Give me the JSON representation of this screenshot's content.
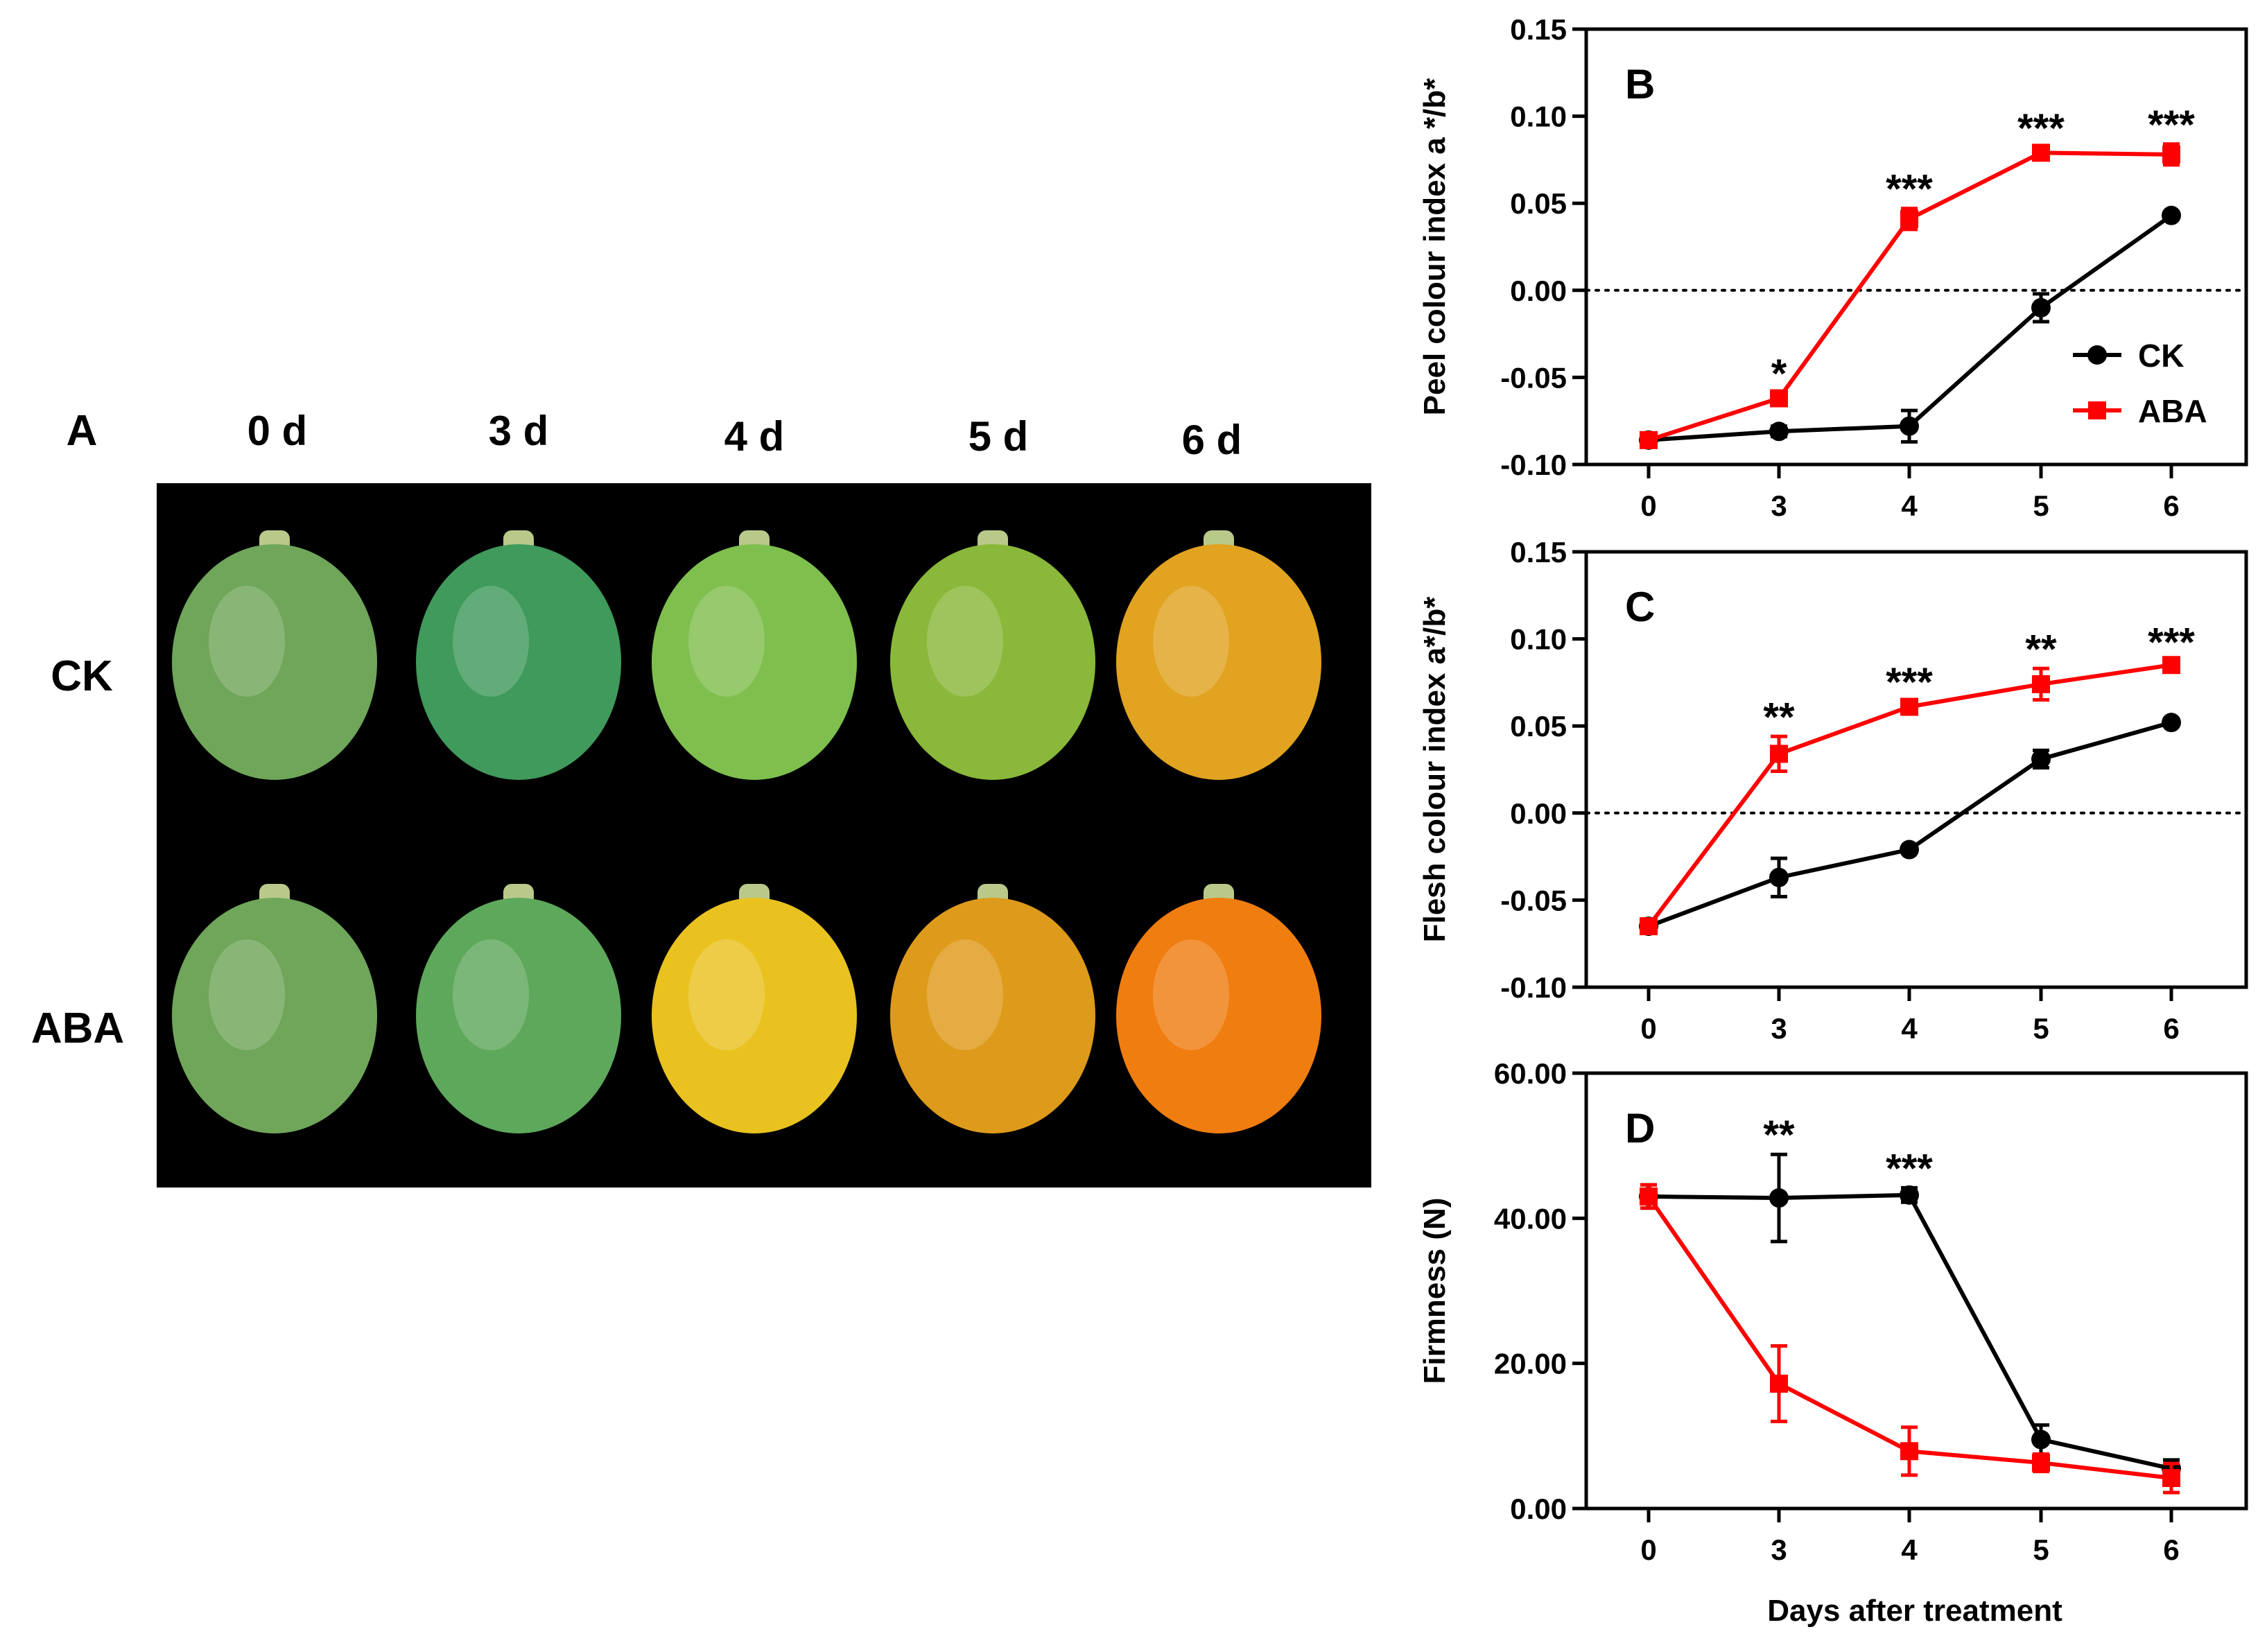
{
  "panel_a": {
    "letter": "A",
    "day_labels": [
      "0 d",
      "3 d",
      "4 d",
      "5 d",
      "6 d"
    ],
    "row_labels": [
      "CK",
      "ABA"
    ],
    "fruit_colors": {
      "CK": [
        "#6fa65a",
        "#3f9a5c",
        "#7fbf4e",
        "#8ab83a",
        "#e1a320"
      ],
      "ABA": [
        "#6fa65a",
        "#5ea85c",
        "#e9c220",
        "#de9a1a",
        "#f07d10"
      ]
    },
    "background_color": "#000000"
  },
  "legend": {
    "entries": [
      "CK",
      "ABA"
    ]
  },
  "colors": {
    "ck": "#000000",
    "aba": "#ff0000"
  },
  "shared_xlabel": "Days after treatment",
  "chart_data": [
    {
      "type": "line",
      "panel": "B",
      "categories": [
        "0",
        "3",
        "4",
        "5",
        "6"
      ],
      "ylabel": "Peel colour index a */b*",
      "ylim": [
        -0.1,
        0.15
      ],
      "yticks": [
        -0.1,
        -0.05,
        0.0,
        0.05,
        0.1,
        0.15
      ],
      "ytick_labels": [
        "-0.10",
        "-0.05",
        "0.00",
        "0.05",
        "0.10",
        "0.15"
      ],
      "zero_line": true,
      "series": [
        {
          "name": "CK",
          "values": [
            -0.086,
            -0.081,
            -0.078,
            -0.01,
            0.043
          ],
          "errors": [
            0.002,
            0.003,
            0.009,
            0.008,
            0.002
          ]
        },
        {
          "name": "ABA",
          "values": [
            -0.086,
            -0.062,
            0.041,
            0.079,
            0.078
          ],
          "errors": [
            0.002,
            0.003,
            0.006,
            0.003,
            0.006
          ]
        }
      ],
      "significance": [
        "",
        "*",
        "***",
        "***",
        "***"
      ]
    },
    {
      "type": "line",
      "panel": "C",
      "categories": [
        "0",
        "3",
        "4",
        "5",
        "6"
      ],
      "ylabel": "Flesh colour index a*/b*",
      "ylim": [
        -0.1,
        0.15
      ],
      "yticks": [
        -0.1,
        -0.05,
        0.0,
        0.05,
        0.1,
        0.15
      ],
      "ytick_labels": [
        "-0.10",
        "-0.05",
        "0.00",
        "0.05",
        "0.10",
        "0.15"
      ],
      "zero_line": true,
      "series": [
        {
          "name": "CK",
          "values": [
            -0.065,
            -0.037,
            -0.021,
            0.031,
            0.052
          ],
          "errors": [
            0.002,
            0.011,
            0.002,
            0.005,
            0.002
          ]
        },
        {
          "name": "ABA",
          "values": [
            -0.065,
            0.034,
            0.061,
            0.074,
            0.085
          ],
          "errors": [
            0.002,
            0.01,
            0.003,
            0.009,
            0.002
          ]
        }
      ],
      "significance": [
        "",
        "**",
        "***",
        "**",
        "***"
      ]
    },
    {
      "type": "line",
      "panel": "D",
      "categories": [
        "0",
        "3",
        "4",
        "5",
        "6"
      ],
      "ylabel": "Firmness (N)",
      "ylim": [
        0,
        60
      ],
      "yticks": [
        0,
        20,
        40,
        60
      ],
      "ytick_labels": [
        "0.00",
        "20.00",
        "40.00",
        "60.00"
      ],
      "zero_line": false,
      "series": [
        {
          "name": "CK",
          "values": [
            43.0,
            42.8,
            43.2,
            9.5,
            5.5
          ],
          "errors": [
            1.6,
            6.0,
            1.0,
            2.0,
            1.2
          ]
        },
        {
          "name": "ABA",
          "values": [
            43.0,
            17.2,
            7.9,
            6.3,
            4.2
          ],
          "errors": [
            1.6,
            5.2,
            3.3,
            1.2,
            2.0
          ]
        }
      ],
      "significance": [
        "",
        "**",
        "***",
        "",
        ""
      ]
    }
  ]
}
